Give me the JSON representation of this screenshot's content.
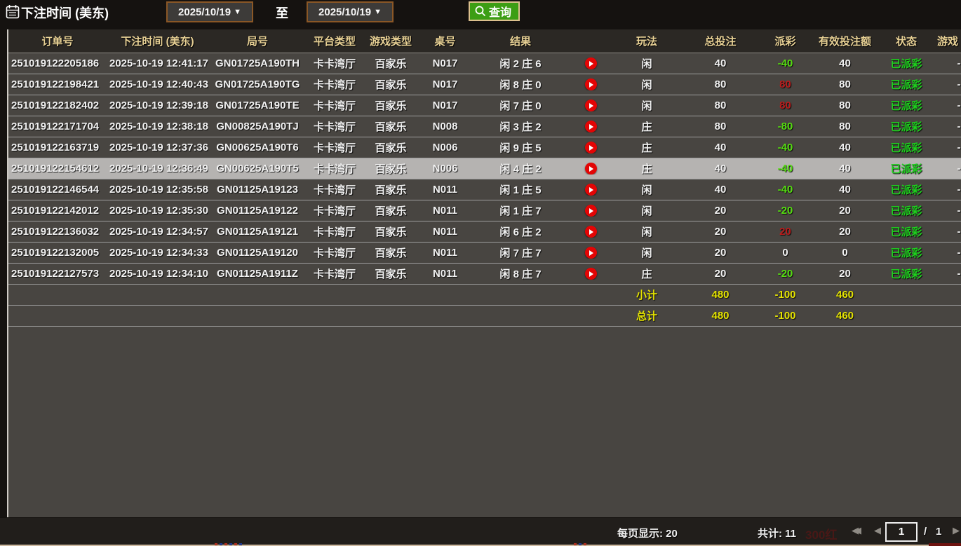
{
  "topbar": {
    "title": "下注时间 (美东)",
    "date_from": "2025/10/19",
    "date_to": "2025/10/19",
    "dropdown_arrow": "▼",
    "to_label": "至",
    "search_label": "查询"
  },
  "table": {
    "columns": {
      "order": "订单号",
      "bet_time": "下注时间 (美东)",
      "round": "局号",
      "platform": "平台类型",
      "game_type": "游戏类型",
      "table_no": "桌号",
      "result": "结果",
      "replay": "",
      "play": "玩法",
      "total_bet": "总投注",
      "payout": "派彩",
      "valid_bet": "有效投注额",
      "status": "状态",
      "extra": "游戏"
    },
    "rows": [
      {
        "order": "251019122205186",
        "time": "2025-10-19 12:41:17",
        "round": "GN01725A190TH",
        "platform": "卡卡湾厅",
        "game": "百家乐",
        "table": "N017",
        "result": "闲 2 庄 6",
        "play": "闲",
        "total_bet": "40",
        "payout": "-40",
        "payout_color": "green",
        "valid_bet": "40",
        "status": "已派彩",
        "extra": "-",
        "selected": false
      },
      {
        "order": "251019122198421",
        "time": "2025-10-19 12:40:43",
        "round": "GN01725A190TG",
        "platform": "卡卡湾厅",
        "game": "百家乐",
        "table": "N017",
        "result": "闲 8 庄 0",
        "play": "闲",
        "total_bet": "80",
        "payout": "80",
        "payout_color": "red",
        "valid_bet": "80",
        "status": "已派彩",
        "extra": "-",
        "selected": false
      },
      {
        "order": "251019122182402",
        "time": "2025-10-19 12:39:18",
        "round": "GN01725A190TE",
        "platform": "卡卡湾厅",
        "game": "百家乐",
        "table": "N017",
        "result": "闲 7 庄 0",
        "play": "闲",
        "total_bet": "80",
        "payout": "80",
        "payout_color": "red",
        "valid_bet": "80",
        "status": "已派彩",
        "extra": "-",
        "selected": false
      },
      {
        "order": "251019122171704",
        "time": "2025-10-19 12:38:18",
        "round": "GN00825A190TJ",
        "platform": "卡卡湾厅",
        "game": "百家乐",
        "table": "N008",
        "result": "闲 3 庄 2",
        "play": "庄",
        "total_bet": "80",
        "payout": "-80",
        "payout_color": "green",
        "valid_bet": "80",
        "status": "已派彩",
        "extra": "-",
        "selected": false
      },
      {
        "order": "251019122163719",
        "time": "2025-10-19 12:37:36",
        "round": "GN00625A190T6",
        "platform": "卡卡湾厅",
        "game": "百家乐",
        "table": "N006",
        "result": "闲 9 庄 5",
        "play": "庄",
        "total_bet": "40",
        "payout": "-40",
        "payout_color": "green",
        "valid_bet": "40",
        "status": "已派彩",
        "extra": "-",
        "selected": false
      },
      {
        "order": "251019122154612",
        "time": "2025-10-19 12:36:49",
        "round": "GN00625A190T5",
        "platform": "卡卡湾厅",
        "game": "百家乐",
        "table": "N006",
        "result": "闲 4 庄 2",
        "play": "庄",
        "total_bet": "40",
        "payout": "-40",
        "payout_color": "green",
        "valid_bet": "40",
        "status": "已派彩",
        "extra": "-",
        "selected": true
      },
      {
        "order": "251019122146544",
        "time": "2025-10-19 12:35:58",
        "round": "GN01125A19123",
        "platform": "卡卡湾厅",
        "game": "百家乐",
        "table": "N011",
        "result": "闲 1 庄 5",
        "play": "闲",
        "total_bet": "40",
        "payout": "-40",
        "payout_color": "green",
        "valid_bet": "40",
        "status": "已派彩",
        "extra": "-",
        "selected": false
      },
      {
        "order": "251019122142012",
        "time": "2025-10-19 12:35:30",
        "round": "GN01125A19122",
        "platform": "卡卡湾厅",
        "game": "百家乐",
        "table": "N011",
        "result": "闲 1 庄 7",
        "play": "闲",
        "total_bet": "20",
        "payout": "-20",
        "payout_color": "green",
        "valid_bet": "20",
        "status": "已派彩",
        "extra": "-",
        "selected": false
      },
      {
        "order": "251019122136032",
        "time": "2025-10-19 12:34:57",
        "round": "GN01125A19121",
        "platform": "卡卡湾厅",
        "game": "百家乐",
        "table": "N011",
        "result": "闲 6 庄 2",
        "play": "闲",
        "total_bet": "20",
        "payout": "20",
        "payout_color": "red",
        "valid_bet": "20",
        "status": "已派彩",
        "extra": "-",
        "selected": false
      },
      {
        "order": "251019122132005",
        "time": "2025-10-19 12:34:33",
        "round": "GN01125A19120",
        "platform": "卡卡湾厅",
        "game": "百家乐",
        "table": "N011",
        "result": "闲 7 庄 7",
        "play": "闲",
        "total_bet": "20",
        "payout": "0",
        "payout_color": "white",
        "valid_bet": "0",
        "status": "已派彩",
        "extra": "-",
        "selected": false
      },
      {
        "order": "251019122127573",
        "time": "2025-10-19 12:34:10",
        "round": "GN01125A1911Z",
        "platform": "卡卡湾厅",
        "game": "百家乐",
        "table": "N011",
        "result": "闲 8 庄 7",
        "play": "庄",
        "total_bet": "20",
        "payout": "-20",
        "payout_color": "green",
        "valid_bet": "20",
        "status": "已派彩",
        "extra": "-",
        "selected": false
      }
    ],
    "subtotal": {
      "label": "小计",
      "total_bet": "480",
      "payout": "-100",
      "valid_bet": "460"
    },
    "grand_total": {
      "label": "总计",
      "total_bet": "480",
      "payout": "-100",
      "valid_bet": "460"
    }
  },
  "footer": {
    "page_size_label": "每页显示: 20",
    "total_count_label": "共计: 11",
    "first_arrow": "◀◀",
    "prev_arrow": "◀",
    "page_current": "1",
    "page_separator": "/",
    "page_total": "1",
    "next_arrow": "▶",
    "ghost_text": "300红"
  },
  "colors": {
    "accent_green_button": "#3c9e14",
    "header_text": "#e8d195",
    "status_green": "#1ed11e",
    "payout_loss_green": "#55dd11",
    "payout_win_red": "#bb1c1c",
    "totals_yellow": "#e4e300",
    "selected_row": "#b5b3b1",
    "date_border_brown": "#8a5726"
  }
}
